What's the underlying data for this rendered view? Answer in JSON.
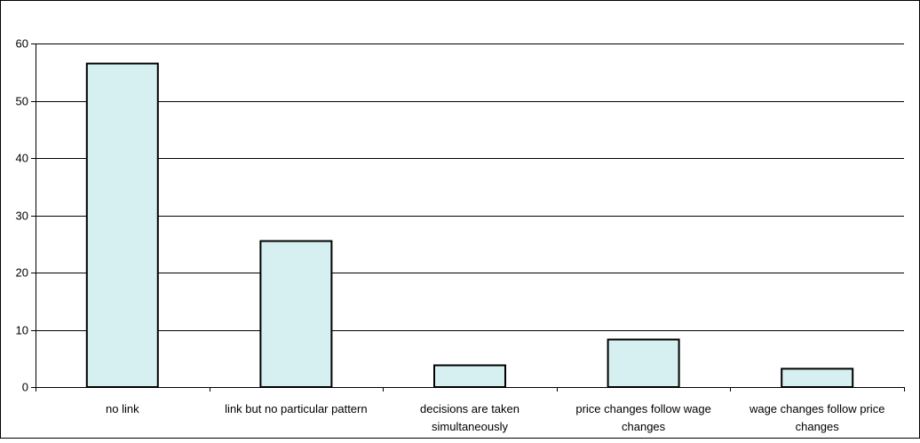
{
  "chart_data": {
    "type": "bar",
    "categories": [
      [
        "no link"
      ],
      [
        "link but no particular pattern"
      ],
      [
        "decisions are taken",
        "simultaneously"
      ],
      [
        "price changes follow wage",
        "changes"
      ],
      [
        "wage changes follow price",
        "changes"
      ]
    ],
    "values": [
      56.5,
      25.5,
      3.8,
      8.3,
      3.2
    ],
    "ylim": [
      0,
      60
    ],
    "yticks": [
      0,
      10,
      20,
      30,
      40,
      50,
      60
    ],
    "grid": true,
    "title": "",
    "xlabel": "",
    "ylabel": "",
    "colors": {
      "bar_fill": "#d6eff0",
      "bar_stroke": "#000000",
      "grid": "#000000",
      "background": "#ffffff"
    }
  }
}
